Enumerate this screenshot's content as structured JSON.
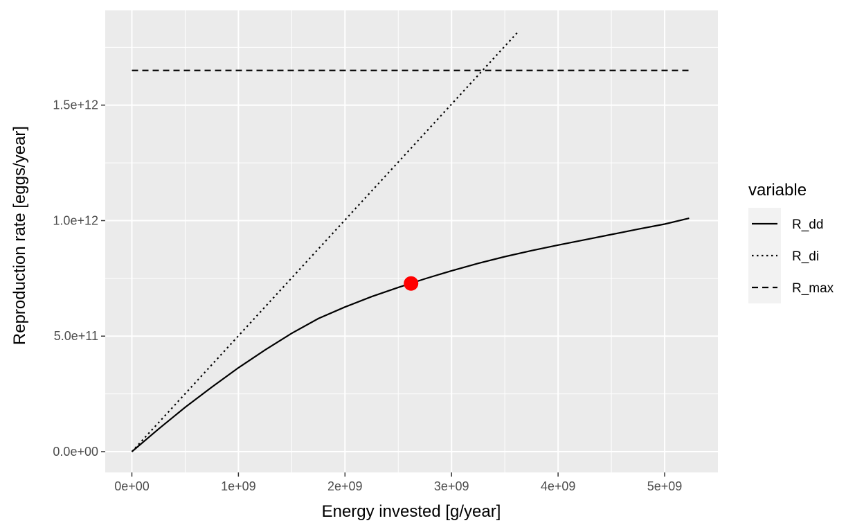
{
  "chart_data": {
    "type": "line",
    "xlabel": "Energy invested [g/year]",
    "ylabel": "Reproduction rate [eggs/year]",
    "xlim": [
      -250000000.0,
      5500000000.0
    ],
    "ylim": [
      -90000000000.0,
      1910000000000.0
    ],
    "x_ticks": [
      {
        "value": 0,
        "label": "0e+00"
      },
      {
        "value": 1000000000.0,
        "label": "1e+09"
      },
      {
        "value": 2000000000.0,
        "label": "2e+09"
      },
      {
        "value": 3000000000.0,
        "label": "3e+09"
      },
      {
        "value": 4000000000.0,
        "label": "4e+09"
      },
      {
        "value": 5000000000.0,
        "label": "5e+09"
      }
    ],
    "y_ticks": [
      {
        "value": 0,
        "label": "0.0e+00"
      },
      {
        "value": 500000000000.0,
        "label": "5.0e+11"
      },
      {
        "value": 1000000000000.0,
        "label": "1.0e+12"
      },
      {
        "value": 1500000000000.0,
        "label": "1.5e+12"
      }
    ],
    "grid": true,
    "legend": {
      "title": "variable",
      "position": "right"
    },
    "series": [
      {
        "name": "R_dd",
        "linetype": "solid",
        "x": [
          0,
          250000000.0,
          500000000.0,
          750000000.0,
          1000000000.0,
          1250000000.0,
          1500000000.0,
          1750000000.0,
          2000000000.0,
          2250000000.0,
          2500000000.0,
          2750000000.0,
          3000000000.0,
          3250000000.0,
          3500000000.0,
          3750000000.0,
          4000000000.0,
          4250000000.0,
          4500000000.0,
          4750000000.0,
          5000000000.0,
          5230000000.0
        ],
        "y": [
          0,
          98000000000.0,
          192000000000.0,
          279000000000.0,
          363000000000.0,
          440000000000.0,
          512000000000.0,
          576000000000.0,
          626000000000.0,
          671000000000.0,
          711000000000.0,
          748000000000.0,
          783000000000.0,
          815000000000.0,
          844000000000.0,
          870000000000.0,
          894000000000.0,
          917000000000.0,
          940000000000.0,
          963000000000.0,
          985000000000.0,
          1010000000000.0
        ]
      },
      {
        "name": "R_di",
        "linetype": "dotted",
        "x": [
          0,
          3630000000.0
        ],
        "y": [
          0,
          1820000000000.0
        ]
      },
      {
        "name": "R_max",
        "linetype": "dashed",
        "x": [
          0,
          5230000000.0
        ],
        "y": [
          1650000000000.0,
          1650000000000.0
        ]
      }
    ],
    "highlight_point": {
      "x": 2620000000.0,
      "y": 728000000000.0,
      "color": "#ff0000"
    },
    "colors": {
      "panel": "#ebebeb",
      "grid": "#ffffff",
      "line": "#000000",
      "legend_key": "#f2f2f2"
    }
  }
}
